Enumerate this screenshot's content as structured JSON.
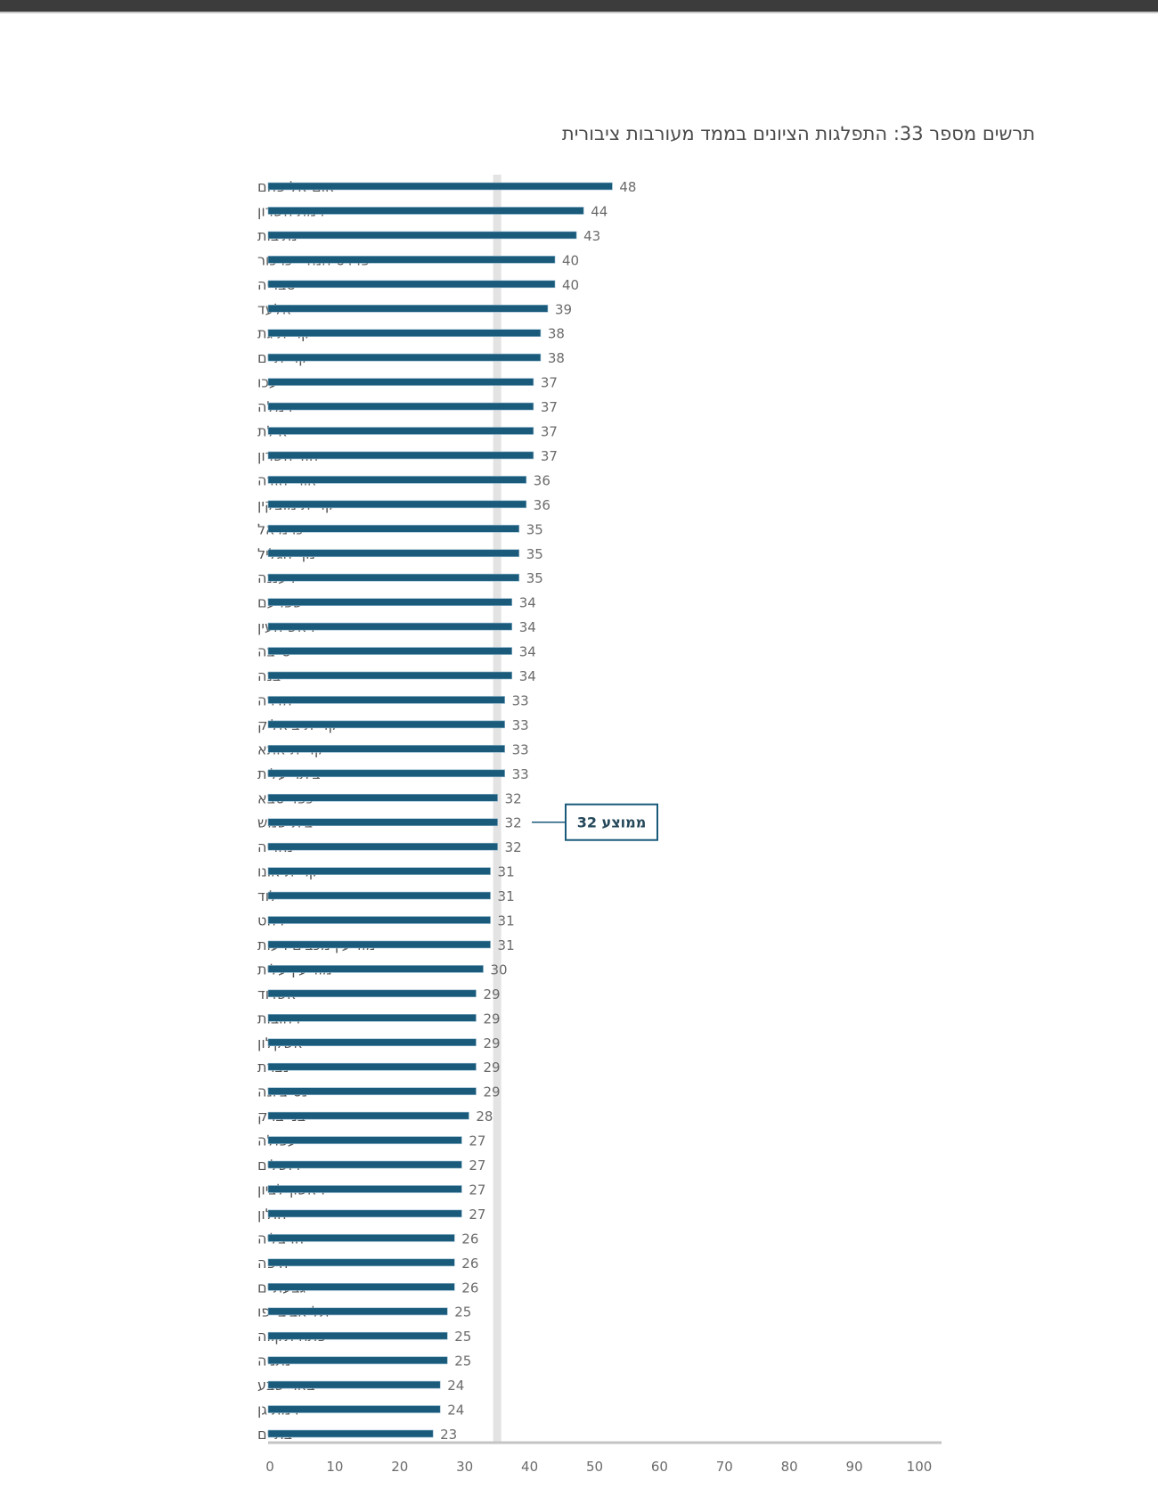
{
  "chart_data": {
    "type": "bar",
    "orientation": "horizontal",
    "title": "תרשים מספר 33: התפלגות הציונים בממד מעורבות ציבורית",
    "xlabel": "",
    "ylabel": "",
    "xlim": [
      0,
      100
    ],
    "x_ticks": [
      "0",
      "10",
      "20",
      "30",
      "40",
      "50",
      "60",
      "70",
      "80",
      "90",
      "100"
    ],
    "grid": false,
    "bar_color": "#1a5a7a",
    "average": {
      "value": 32,
      "label": "ממוצע 32"
    },
    "categories": [
      "אום אל פחם",
      "רמת השרון",
      "נתיבות",
      "פרדס חנה - כרכור",
      "טבריה",
      "אלעד",
      "קריית גת",
      "קריית ים",
      "עכו",
      "רמלה",
      "אילת",
      "הוד השרון",
      "אור יהודה",
      "קריית מוצקין",
      "כרמיאל",
      "נוף הגליל",
      "רעננה",
      "שפרעם",
      "ראש העין",
      "טייבה",
      "יבנה",
      "חדרה",
      "קריית ביאליק",
      "קריית אתא",
      "ביתר עלית",
      "כפר סבא",
      "בית שמש",
      "נהריה",
      "קריית אונו",
      "לוד",
      "רהט",
      "מודיעין מכבים רעות",
      "מודיעין עלית",
      "אשדוד",
      "רחובות",
      "אשקלון",
      "נצרת",
      "נס ציונה",
      "בני ברק",
      "עפולה",
      "ירושלים",
      "ראשון לציון",
      "חולון",
      "הרצליה",
      "חיפה",
      "גבעתיים",
      "תל אביב יפו",
      "פתח תקווה",
      "נתניה",
      "באר שבע",
      "רמת גן",
      "בת ים"
    ],
    "values": [
      48,
      44,
      43,
      40,
      40,
      39,
      38,
      38,
      37,
      37,
      37,
      37,
      36,
      36,
      35,
      35,
      35,
      34,
      34,
      34,
      34,
      33,
      33,
      33,
      33,
      32,
      32,
      32,
      31,
      31,
      31,
      31,
      30,
      29,
      29,
      29,
      29,
      29,
      28,
      27,
      27,
      27,
      27,
      26,
      26,
      26,
      25,
      25,
      25,
      24,
      24,
      23
    ],
    "value_labels": [
      "48",
      "44",
      "43",
      "40",
      "40",
      "39",
      "38",
      "38",
      "37",
      "37",
      "37",
      "37",
      "36",
      "36",
      "35",
      "35",
      "35",
      "34",
      "34",
      "34",
      "34",
      "33",
      "33",
      "33",
      "33",
      "32",
      "32",
      "32",
      "31",
      "31",
      "31",
      "31",
      "30",
      "29",
      "29",
      "29",
      "29",
      "29",
      "28",
      "27",
      "27",
      "27",
      "27",
      "26",
      "26",
      "26",
      "25",
      "25",
      "25",
      "24",
      "24",
      "23"
    ]
  }
}
